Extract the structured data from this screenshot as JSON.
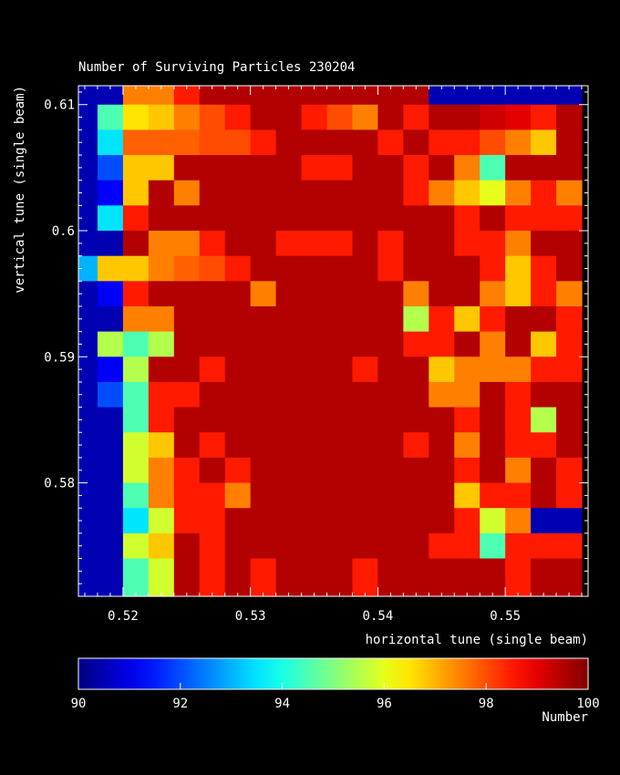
{
  "chart_data": {
    "type": "heatmap",
    "title": "Number of Surviving Particles    230204",
    "xlabel": "horizontal tune (single beam)",
    "ylabel": "vertical tune (single beam)",
    "colorbar_label": "Number",
    "xlim": [
      0.5165,
      0.5565
    ],
    "ylim": [
      0.571,
      0.6115
    ],
    "x_ticks": [
      0.52,
      0.53,
      0.54,
      0.55
    ],
    "x_tick_labels": [
      "0.52",
      "0.53",
      "0.54",
      "0.55"
    ],
    "y_ticks": [
      0.58,
      0.59,
      0.6,
      0.61
    ],
    "y_tick_labels": [
      "0.58",
      "0.59",
      "0.6",
      "0.61"
    ],
    "color_range": [
      90,
      100
    ],
    "colorbar_ticks": [
      90,
      92,
      94,
      96,
      98,
      100
    ],
    "colorbar_tick_labels": [
      "90",
      "92",
      "94",
      "96",
      "98",
      "100"
    ],
    "x_centers": [
      0.517,
      0.519,
      0.521,
      0.523,
      0.525,
      0.527,
      0.529,
      0.531,
      0.533,
      0.535,
      0.537,
      0.539,
      0.541,
      0.543,
      0.545,
      0.547,
      0.549,
      0.551,
      0.553,
      0.555
    ],
    "y_centers": [
      0.611,
      0.609,
      0.607,
      0.605,
      0.603,
      0.601,
      0.599,
      0.597,
      0.595,
      0.593,
      0.591,
      0.589,
      0.587,
      0.585,
      0.583,
      0.581,
      0.579,
      0.577,
      0.575,
      0.573,
      0.571
    ],
    "values": [
      [
        90.5,
        90.5,
        97.5,
        97.5,
        98.5,
        99.5,
        99.5,
        99.5,
        99.5,
        99.5,
        99.5,
        99.5,
        99.5,
        99.5,
        90.5,
        90.5,
        90.5,
        90.5,
        90.5,
        90.5
      ],
      [
        90.5,
        94.5,
        96.5,
        96.8,
        97.5,
        98.0,
        98.5,
        99.5,
        99.5,
        98.5,
        98.0,
        97.5,
        99.5,
        98.5,
        99.5,
        99.5,
        99.2,
        99.0,
        98.5,
        99.5
      ],
      [
        90.5,
        93.5,
        97.8,
        97.8,
        97.8,
        98.0,
        98.0,
        98.5,
        99.5,
        99.5,
        99.5,
        99.5,
        98.5,
        99.5,
        98.5,
        98.5,
        98.0,
        97.5,
        96.8,
        99.5
      ],
      [
        90.5,
        92.0,
        96.8,
        96.8,
        99.5,
        99.5,
        99.5,
        99.5,
        99.5,
        98.5,
        98.5,
        99.5,
        99.5,
        98.5,
        99.5,
        97.5,
        94.5,
        99.5,
        99.5,
        99.5
      ],
      [
        90.5,
        91.2,
        96.8,
        99.5,
        97.5,
        99.5,
        99.5,
        99.5,
        99.5,
        99.5,
        99.5,
        99.5,
        99.5,
        98.5,
        97.5,
        96.8,
        96.0,
        97.5,
        98.5,
        97.5
      ],
      [
        90.5,
        93.5,
        98.5,
        99.5,
        99.5,
        99.5,
        99.5,
        99.5,
        99.5,
        99.5,
        99.5,
        99.5,
        99.5,
        99.5,
        99.5,
        98.5,
        99.5,
        98.5,
        98.5,
        98.5
      ],
      [
        90.5,
        90.5,
        99.5,
        97.5,
        97.5,
        98.5,
        99.5,
        99.5,
        98.5,
        98.5,
        98.5,
        99.5,
        98.5,
        99.5,
        99.5,
        98.5,
        98.5,
        97.5,
        99.5,
        99.5
      ],
      [
        93.0,
        96.8,
        96.8,
        97.5,
        97.8,
        98.0,
        98.5,
        99.5,
        99.5,
        99.5,
        99.5,
        99.5,
        98.5,
        99.5,
        99.5,
        99.5,
        98.5,
        96.8,
        98.5,
        99.5
      ],
      [
        90.5,
        91.2,
        98.5,
        99.5,
        99.5,
        99.5,
        99.5,
        97.5,
        99.5,
        99.5,
        99.5,
        99.5,
        99.5,
        97.5,
        99.5,
        99.5,
        97.5,
        96.8,
        98.5,
        97.5
      ],
      [
        90.5,
        90.5,
        97.5,
        97.5,
        99.5,
        99.5,
        99.5,
        99.5,
        99.5,
        99.5,
        99.5,
        99.5,
        99.5,
        95.5,
        98.5,
        96.8,
        98.5,
        99.5,
        99.5,
        98.5
      ],
      [
        90.5,
        95.5,
        94.5,
        95.5,
        99.5,
        99.5,
        99.5,
        99.5,
        99.5,
        99.5,
        99.5,
        99.5,
        99.5,
        98.5,
        98.5,
        99.5,
        97.5,
        99.5,
        96.8,
        98.5
      ],
      [
        90.5,
        91.2,
        95.5,
        99.5,
        99.5,
        98.5,
        99.5,
        99.5,
        99.5,
        99.5,
        99.5,
        98.5,
        99.5,
        99.5,
        96.8,
        97.5,
        97.5,
        97.5,
        98.5,
        98.5
      ],
      [
        90.5,
        92.0,
        94.5,
        98.5,
        98.5,
        99.5,
        99.5,
        99.5,
        99.5,
        99.5,
        99.5,
        99.5,
        99.5,
        99.5,
        97.5,
        97.5,
        99.5,
        98.5,
        99.5,
        99.5
      ],
      [
        90.5,
        90.5,
        94.5,
        98.5,
        99.5,
        99.5,
        99.5,
        99.5,
        99.5,
        99.5,
        99.5,
        99.5,
        99.5,
        99.5,
        99.5,
        98.5,
        99.5,
        98.5,
        95.5,
        99.5
      ],
      [
        90.5,
        90.5,
        95.8,
        96.8,
        99.5,
        98.5,
        99.5,
        99.5,
        99.5,
        99.5,
        99.5,
        99.5,
        99.5,
        98.5,
        99.5,
        97.5,
        99.5,
        98.5,
        98.5,
        99.5
      ],
      [
        90.5,
        90.5,
        95.8,
        97.5,
        98.5,
        99.5,
        98.5,
        99.5,
        99.5,
        99.5,
        99.5,
        99.5,
        99.5,
        99.5,
        99.5,
        98.5,
        99.5,
        97.5,
        99.5,
        98.5
      ],
      [
        90.5,
        90.5,
        94.5,
        97.5,
        98.5,
        98.5,
        97.5,
        99.5,
        99.5,
        99.5,
        99.5,
        99.5,
        99.5,
        99.5,
        99.5,
        96.8,
        98.5,
        98.5,
        99.5,
        98.5
      ],
      [
        90.5,
        90.5,
        93.5,
        95.8,
        98.5,
        98.5,
        99.5,
        99.5,
        99.5,
        99.5,
        99.5,
        99.5,
        99.5,
        99.5,
        99.5,
        98.5,
        95.8,
        97.5,
        90.5,
        90.5
      ],
      [
        90.5,
        90.5,
        95.8,
        96.8,
        99.5,
        98.5,
        99.5,
        99.5,
        99.5,
        99.5,
        99.5,
        99.5,
        99.5,
        99.5,
        98.5,
        98.5,
        94.5,
        98.5,
        98.5,
        98.5
      ],
      [
        90.5,
        90.5,
        94.5,
        95.8,
        99.5,
        98.5,
        99.5,
        98.5,
        99.5,
        99.5,
        99.5,
        98.5,
        99.5,
        99.5,
        99.5,
        99.5,
        99.5,
        98.5,
        99.5,
        99.5
      ],
      [
        90.5,
        90.5,
        94.5,
        95.8,
        99.5,
        98.5,
        99.5,
        98.5,
        99.5,
        99.5,
        99.5,
        98.5,
        99.5,
        99.5,
        99.5,
        99.5,
        99.5,
        98.5,
        99.5,
        99.5
      ]
    ]
  }
}
